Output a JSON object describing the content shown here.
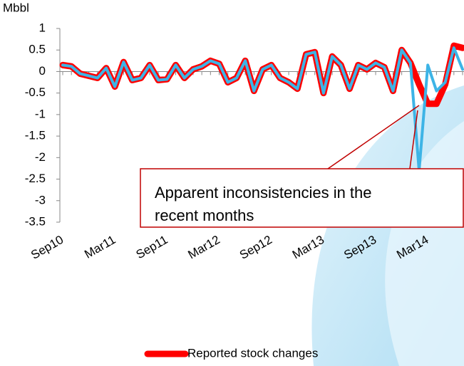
{
  "chart_data": {
    "type": "line",
    "y_label": "Mbbl",
    "annotation": [
      "Apparent inconsistencies in the",
      "recent months"
    ],
    "categories": [
      "Sep10",
      null,
      null,
      null,
      null,
      null,
      "Mar11",
      null,
      null,
      null,
      null,
      null,
      "Sep11",
      null,
      null,
      null,
      null,
      null,
      "Mar12",
      null,
      null,
      null,
      null,
      null,
      "Sep12",
      null,
      null,
      null,
      null,
      null,
      "Mar13",
      null,
      null,
      null,
      null,
      null,
      "Sep13",
      null,
      null,
      null,
      null,
      null,
      "Mar14",
      null,
      null,
      null,
      null
    ],
    "series": [
      {
        "name": "Reported stock changes",
        "color": "#ff0000",
        "values": [
          0.15,
          0.12,
          -0.05,
          -0.1,
          -0.15,
          0.08,
          -0.35,
          0.22,
          -0.2,
          -0.15,
          0.15,
          -0.2,
          -0.18,
          0.15,
          -0.15,
          0.05,
          0.12,
          0.25,
          0.18,
          -0.25,
          -0.15,
          0.25,
          -0.45,
          0.05,
          0.15,
          -0.15,
          -0.25,
          -0.4,
          0.4,
          0.45,
          -0.5,
          0.35,
          0.15,
          -0.4,
          0.15,
          0.05,
          0.2,
          0.1,
          -0.45,
          0.5,
          0.2,
          -0.3,
          -0.75,
          -0.75,
          -0.3,
          0.6,
          0.55
        ]
      },
      {
        "color": "#3db4e6",
        "values": [
          0.15,
          0.12,
          -0.05,
          -0.1,
          -0.15,
          0.08,
          -0.35,
          0.22,
          -0.2,
          -0.15,
          0.15,
          -0.2,
          -0.18,
          0.15,
          -0.15,
          0.05,
          0.12,
          0.25,
          0.18,
          -0.25,
          -0.15,
          0.25,
          -0.45,
          0.05,
          0.15,
          -0.15,
          -0.25,
          -0.4,
          0.4,
          0.45,
          -0.5,
          0.35,
          0.15,
          -0.4,
          0.15,
          0.05,
          0.2,
          0.1,
          -0.45,
          0.5,
          0.2,
          -2.3,
          0.15,
          -0.45,
          -0.25,
          0.55,
          0.05
        ]
      }
    ],
    "ylim": [
      -3.5,
      1
    ],
    "yticks": [
      1,
      0.5,
      0,
      -0.5,
      -1,
      -1.5,
      -2,
      -2.5,
      -3,
      -3.5
    ]
  }
}
